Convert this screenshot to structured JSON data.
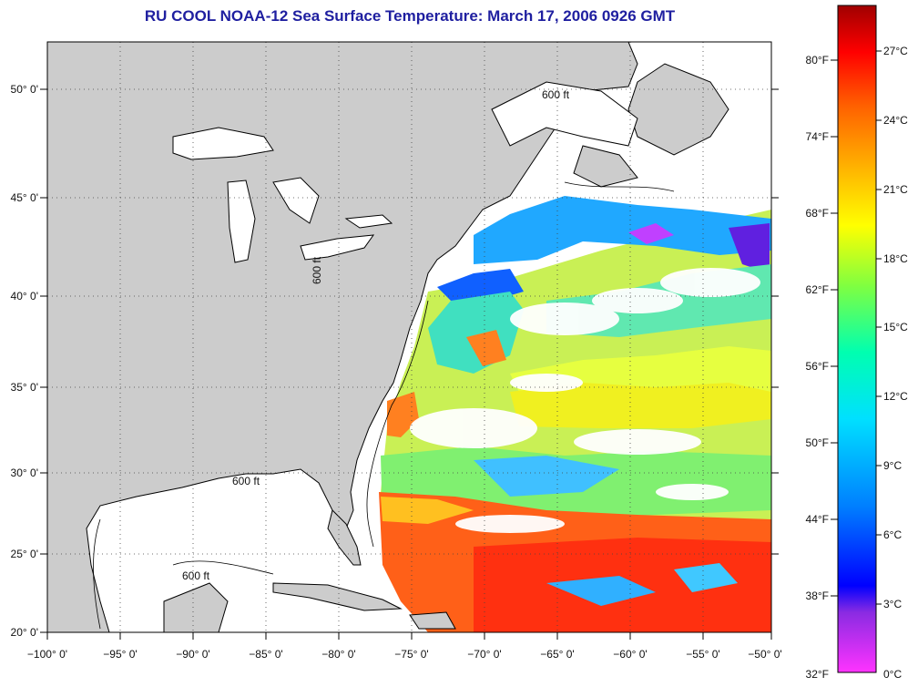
{
  "title": "RU COOL  NOAA-12  Sea Surface Temperature:  March 17, 2006 0926 GMT",
  "longitude_labels": [
    "−100° 0'",
    "−95° 0'",
    "−90° 0'",
    "−85° 0'",
    "−80° 0'",
    "−75° 0'",
    "−70° 0'",
    "−65° 0'",
    "−60° 0'",
    "−55° 0'",
    "−50° 0'"
  ],
  "latitude_labels": [
    "50° 0'",
    "45° 0'",
    "40° 0'",
    "35° 0'",
    "30° 0'",
    "25° 0'",
    "20° 0'"
  ],
  "contour_label": "600 ft",
  "colorbar": {
    "fahrenheit_labels": [
      "80°F",
      "74°F",
      "68°F",
      "62°F",
      "56°F",
      "50°F",
      "44°F",
      "38°F",
      "32°F"
    ],
    "celsius_labels": [
      "27°C",
      "24°C",
      "21°C",
      "18°C",
      "15°C",
      "12°C",
      "9°C",
      "6°C",
      "3°C",
      "0°C"
    ],
    "colors": [
      "#ff33ff",
      "#8a2be2",
      "#0000ff",
      "#0080ff",
      "#00e0ff",
      "#00ffb0",
      "#80ff40",
      "#ffff00",
      "#ffb000",
      "#ff6000",
      "#ff0000",
      "#b00000"
    ]
  },
  "colors": {
    "title": "#1f1fa0",
    "land": "#cccccc",
    "ocean_no_data": "#ffffff",
    "coast": "#000000"
  }
}
